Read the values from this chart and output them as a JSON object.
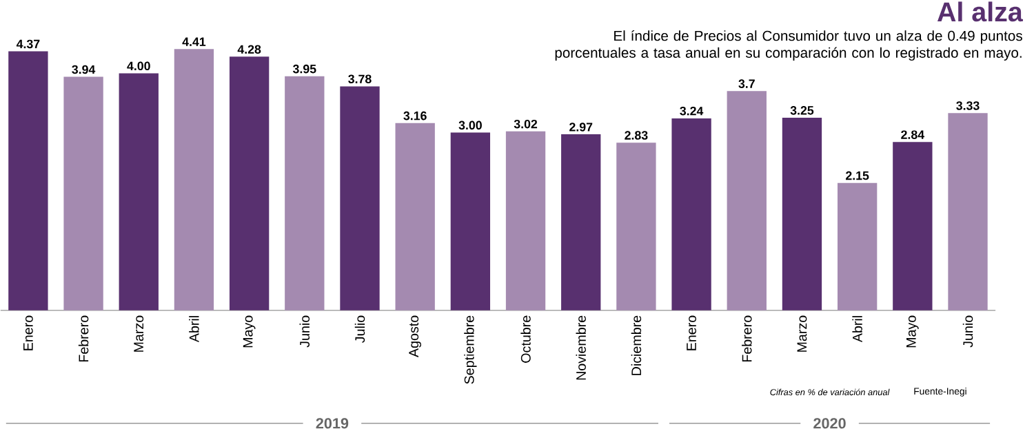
{
  "chart_data": {
    "type": "bar",
    "title": "Al alza",
    "subtitle": "El índice de Precios al Consumidor tuvo un alza de 0.49 puntos porcentuales a tasa anual en su comparación con lo registrado en mayo.",
    "categories": [
      "Enero",
      "Febrero",
      "Marzo",
      "Abril",
      "Mayo",
      "Junio",
      "Julio",
      "Agosto",
      "Septiembre",
      "Octubre",
      "Noviembre",
      "Diciembre",
      "Enero",
      "Febrero",
      "Marzo",
      "Abril",
      "Mayo",
      "Junio"
    ],
    "values": [
      4.37,
      3.94,
      4.0,
      4.41,
      4.28,
      3.95,
      3.78,
      3.16,
      3.0,
      3.02,
      2.97,
      2.83,
      3.24,
      3.7,
      3.25,
      2.15,
      2.84,
      3.33
    ],
    "value_labels": [
      "4.37",
      "3.94",
      "4.00",
      "4.41",
      "4.28",
      "3.95",
      "3.78",
      "3.16",
      "3.00",
      "3.02",
      "2.97",
      "2.83",
      "3.24",
      "3.7",
      "3.25",
      "2.15",
      "2.84",
      "3.33"
    ],
    "colors": [
      "#58306f",
      "#a48ab0",
      "#58306f",
      "#a48ab0",
      "#58306f",
      "#a48ab0",
      "#58306f",
      "#a48ab0",
      "#58306f",
      "#a48ab0",
      "#58306f",
      "#a48ab0",
      "#58306f",
      "#a48ab0",
      "#58306f",
      "#a48ab0",
      "#58306f",
      "#a48ab0"
    ],
    "annotations": [
      "2019",
      "2020",
      "Cifras en % de variación anual",
      "Fuente-Inegi"
    ]
  }
}
